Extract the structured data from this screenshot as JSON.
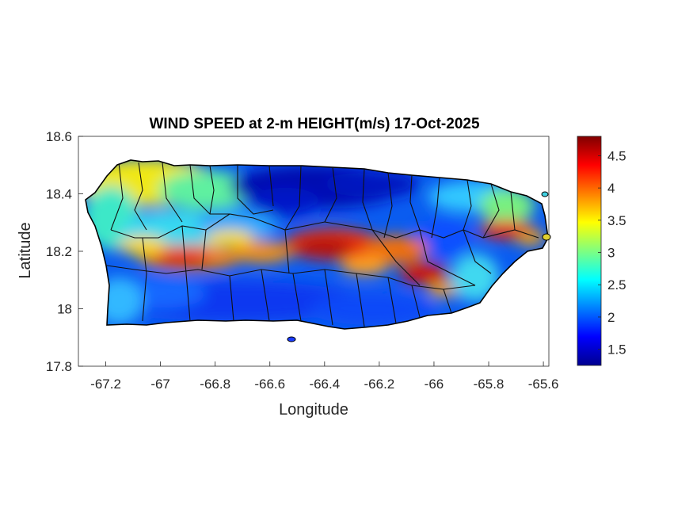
{
  "chart_data": {
    "type": "heatmap",
    "title": "WIND SPEED at 2-m HEIGHT(m/s) 17-Oct-2025",
    "xlabel": "Longitude",
    "ylabel": "Latitude",
    "xlim": [
      -67.3,
      -65.58
    ],
    "ylim": [
      17.8,
      18.6
    ],
    "x_ticks": [
      "-67.2",
      "-67",
      "-66.8",
      "-66.6",
      "-66.4",
      "-66.2",
      "-66",
      "-65.8",
      "-65.6"
    ],
    "y_ticks": [
      "18.6",
      "18.4",
      "18.2",
      "18",
      "17.8"
    ],
    "colorbar": {
      "colormap": "jet",
      "range": [
        1.25,
        4.8
      ],
      "ticks": [
        "4.5",
        "4",
        "3.5",
        "3",
        "2.5",
        "2",
        "1.5"
      ]
    },
    "wind_bands": [
      {
        "description": "interior high-wind band (~4.0-4.8 m/s) along central mountains",
        "lon_range": [
          -67.0,
          -66.0
        ],
        "approx_lat": [
          18.15,
          18.25
        ],
        "peak": 4.8
      },
      {
        "description": "eastern secondary maximum",
        "lon": -65.72,
        "lat": 18.26,
        "peak": 4.2
      },
      {
        "description": "north-central calm area",
        "lon": -66.45,
        "lat": 18.44,
        "value": 1.3
      },
      {
        "description": "southern coastal lows",
        "lon_range": [
          -67.1,
          -66.2
        ],
        "approx_lat": [
          17.95,
          18.05
        ],
        "value": 1.7
      }
    ]
  }
}
